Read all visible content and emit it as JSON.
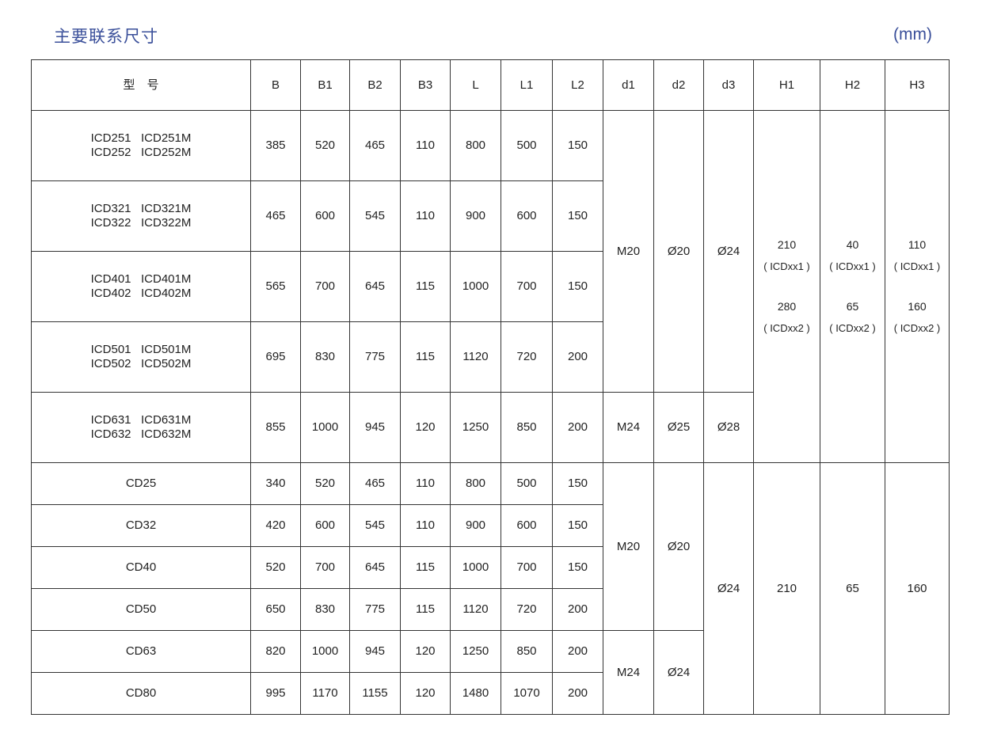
{
  "title": "主要联系尺寸",
  "unit": "(mm)",
  "header": {
    "columns": [
      "型　号",
      "B",
      "B1",
      "B2",
      "B3",
      "L",
      "L1",
      "L2",
      "d1",
      "d2",
      "d3",
      "H1",
      "H2",
      "H3"
    ]
  },
  "icd": {
    "rows": [
      {
        "models": [
          "ICD251   ICD251M",
          "ICD252   ICD252M"
        ],
        "values": [
          "385",
          "520",
          "465",
          "110",
          "800",
          "500",
          "150"
        ]
      },
      {
        "models": [
          "ICD321   ICD321M",
          "ICD322   ICD322M"
        ],
        "values": [
          "465",
          "600",
          "545",
          "110",
          "900",
          "600",
          "150"
        ]
      },
      {
        "models": [
          "ICD401   ICD401M",
          "ICD402   ICD402M"
        ],
        "values": [
          "565",
          "700",
          "645",
          "115",
          "1000",
          "700",
          "150"
        ]
      },
      {
        "models": [
          "ICD501   ICD501M",
          "ICD502   ICD502M"
        ],
        "values": [
          "695",
          "830",
          "775",
          "115",
          "1120",
          "720",
          "200"
        ]
      },
      {
        "models": [
          "ICD631   ICD631M",
          "ICD632   ICD632M"
        ],
        "values": [
          "855",
          "1000",
          "945",
          "120",
          "1250",
          "850",
          "200"
        ]
      }
    ],
    "d_group1": [
      "M20",
      "Ø20",
      "Ø24"
    ],
    "d_group2": [
      "M24",
      "Ø25",
      "Ø28"
    ],
    "h": [
      {
        "v1": "210",
        "n1": "( ICDxx1 )",
        "v2": "280",
        "n2": "( ICDxx2 )"
      },
      {
        "v1": "40",
        "n1": "( ICDxx1 )",
        "v2": "65",
        "n2": "( ICDxx2 )"
      },
      {
        "v1": "110",
        "n1": "( ICDxx1 )",
        "v2": "160",
        "n2": "( ICDxx2 )"
      }
    ]
  },
  "cd": {
    "rows": [
      {
        "model": "CD25",
        "values": [
          "340",
          "520",
          "465",
          "110",
          "800",
          "500",
          "150"
        ]
      },
      {
        "model": "CD32",
        "values": [
          "420",
          "600",
          "545",
          "110",
          "900",
          "600",
          "150"
        ]
      },
      {
        "model": "CD40",
        "values": [
          "520",
          "700",
          "645",
          "115",
          "1000",
          "700",
          "150"
        ]
      },
      {
        "model": "CD50",
        "values": [
          "650",
          "830",
          "775",
          "115",
          "1120",
          "720",
          "200"
        ]
      },
      {
        "model": "CD63",
        "values": [
          "820",
          "1000",
          "945",
          "120",
          "1250",
          "850",
          "200"
        ]
      },
      {
        "model": "CD80",
        "values": [
          "995",
          "1170",
          "1155",
          "120",
          "1480",
          "1070",
          "200"
        ]
      }
    ],
    "d_group1": [
      "M20",
      "Ø20"
    ],
    "d_group2": [
      "M24",
      "Ø24"
    ],
    "d3": "Ø24",
    "h": [
      "210",
      "65",
      "160"
    ]
  }
}
